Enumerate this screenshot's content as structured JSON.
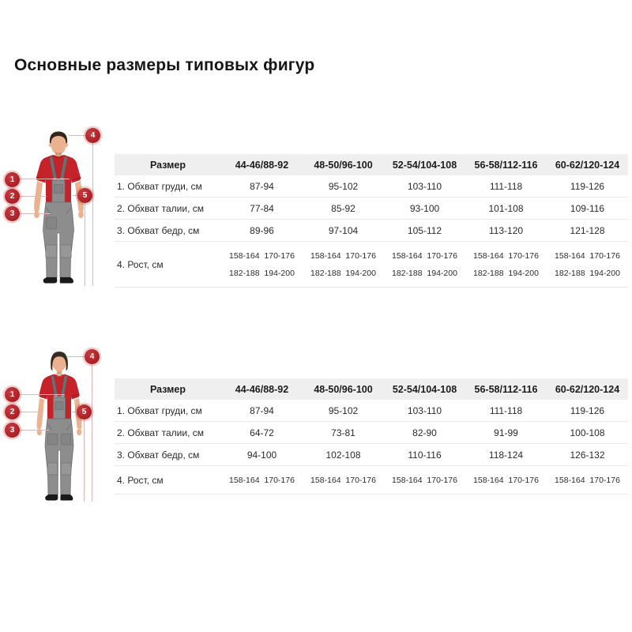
{
  "title": "Основные размеры типовых фигур",
  "colors": {
    "accent_red": "#c5222a",
    "marker_red": "#ab2026",
    "overalls_gray": "#8d8d8d",
    "table_header_bg": "#efefef"
  },
  "sections": [
    {
      "name": "men",
      "markers": [
        "1",
        "2",
        "3",
        "4",
        "5"
      ],
      "table": {
        "headers": [
          "Размер",
          "44-46/88-92",
          "48-50/96-100",
          "52-54/104-108",
          "56-58/112-116",
          "60-62/120-124"
        ],
        "rows": [
          {
            "label": "1. Обхват груди, см",
            "cells": [
              [
                "87-94"
              ],
              [
                "95-102"
              ],
              [
                "103-110"
              ],
              [
                "111-118"
              ],
              [
                "119-126"
              ]
            ]
          },
          {
            "label": "2. Обхват талии, см",
            "cells": [
              [
                "77-84"
              ],
              [
                "85-92"
              ],
              [
                "93-100"
              ],
              [
                "101-108"
              ],
              [
                "109-116"
              ]
            ]
          },
          {
            "label": "3. Обхват бедр, см",
            "cells": [
              [
                "89-96"
              ],
              [
                "97-104"
              ],
              [
                "105-112"
              ],
              [
                "113-120"
              ],
              [
                "121-128"
              ]
            ]
          },
          {
            "label": "4. Рост, см",
            "cells": [
              [
                "158-164  170-176",
                "182-188  194-200"
              ],
              [
                "158-164  170-176",
                "182-188  194-200"
              ],
              [
                "158-164  170-176",
                "182-188  194-200"
              ],
              [
                "158-164  170-176",
                "182-188  194-200"
              ],
              [
                "158-164  170-176",
                "182-188  194-200"
              ]
            ]
          }
        ]
      }
    },
    {
      "name": "women",
      "markers": [
        "1",
        "2",
        "3",
        "4",
        "5"
      ],
      "table": {
        "headers": [
          "Размер",
          "44-46/88-92",
          "48-50/96-100",
          "52-54/104-108",
          "56-58/112-116",
          "60-62/120-124"
        ],
        "rows": [
          {
            "label": "1. Обхват груди, см",
            "cells": [
              [
                "87-94"
              ],
              [
                "95-102"
              ],
              [
                "103-110"
              ],
              [
                "111-118"
              ],
              [
                "119-126"
              ]
            ]
          },
          {
            "label": "2. Обхват талии, см",
            "cells": [
              [
                "64-72"
              ],
              [
                "73-81"
              ],
              [
                "82-90"
              ],
              [
                "91-99"
              ],
              [
                "100-108"
              ]
            ]
          },
          {
            "label": "3. Обхват бедр, см",
            "cells": [
              [
                "94-100"
              ],
              [
                "102-108"
              ],
              [
                "110-116"
              ],
              [
                "118-124"
              ],
              [
                "126-132"
              ]
            ]
          },
          {
            "label": "4. Рост, см",
            "cells": [
              [
                "158-164  170-176"
              ],
              [
                "158-164  170-176"
              ],
              [
                "158-164  170-176"
              ],
              [
                "158-164  170-176"
              ],
              [
                "158-164  170-176"
              ]
            ]
          }
        ]
      }
    }
  ]
}
